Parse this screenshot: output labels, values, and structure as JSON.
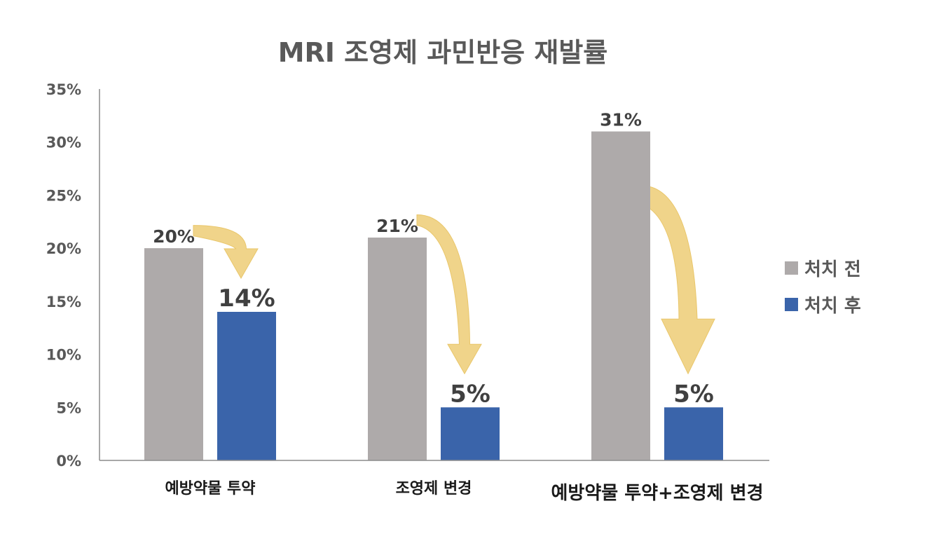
{
  "chart_data": {
    "type": "bar",
    "title": "MRI 조영제 과민반응 재발률",
    "xlabel": "",
    "ylabel": "",
    "ylim": [
      0,
      35
    ],
    "yticks": [
      "0%",
      "5%",
      "10%",
      "15%",
      "20%",
      "25%",
      "30%",
      "35%"
    ],
    "categories": [
      "예방약물 투약",
      "조영제 변경",
      "예방약물 투약+조영제 변경"
    ],
    "series": [
      {
        "name": "처치 전",
        "values": [
          20,
          21,
          31
        ],
        "labels": [
          "20%",
          "21%",
          "31%"
        ],
        "color": "#aeaaaa"
      },
      {
        "name": "처치 후",
        "values": [
          14,
          5,
          5
        ],
        "labels": [
          "14%",
          "5%",
          "5%"
        ],
        "color": "#3a64aa"
      }
    ],
    "annotations": "arrows from 처치 전 bar to 처치 후 bar",
    "arrow_color": "#f0d48a",
    "grid": false,
    "legend_position": "right"
  }
}
